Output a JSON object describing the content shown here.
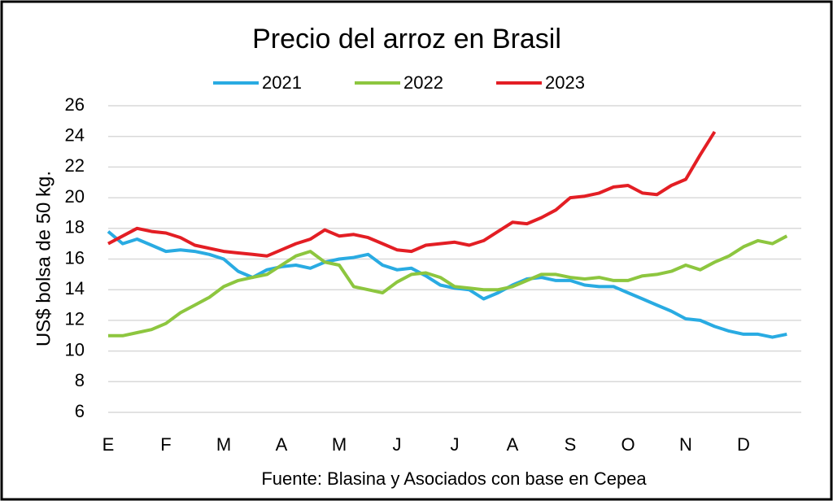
{
  "chart_data": {
    "type": "line",
    "title": "Precio del arroz en Brasil",
    "y_label": "US$ bolsa de 50 kg.",
    "source": "Fuente: Blasina y Asociados con base en Cepea",
    "categories": [
      "E",
      null,
      null,
      null,
      "F",
      null,
      null,
      null,
      "M",
      null,
      null,
      null,
      "A",
      null,
      null,
      null,
      "M",
      null,
      null,
      null,
      "J",
      null,
      null,
      null,
      "J",
      null,
      null,
      null,
      "A",
      null,
      null,
      null,
      "S",
      null,
      null,
      null,
      "O",
      null,
      null,
      null,
      "N",
      null,
      null,
      null,
      "D",
      null,
      null,
      null
    ],
    "series": [
      {
        "name": "2021",
        "color": "#29abe2",
        "values": [
          17.8,
          17.0,
          17.3,
          16.9,
          16.5,
          16.6,
          16.5,
          16.3,
          16.0,
          15.2,
          14.8,
          15.3,
          15.5,
          15.6,
          15.4,
          15.8,
          16.0,
          16.1,
          16.3,
          15.6,
          15.3,
          15.4,
          14.9,
          14.3,
          14.1,
          14.0,
          13.4,
          13.8,
          14.3,
          14.7,
          14.8,
          14.6,
          14.6,
          14.3,
          14.2,
          14.2,
          13.8,
          13.4,
          13.0,
          12.6,
          12.1,
          12.0,
          11.6,
          11.3,
          11.1,
          11.1,
          10.9,
          11.1
        ]
      },
      {
        "name": "2022",
        "color": "#8dc63f",
        "values": [
          11.0,
          11.0,
          11.2,
          11.4,
          11.8,
          12.5,
          13.0,
          13.5,
          14.2,
          14.6,
          14.8,
          15.0,
          15.6,
          16.2,
          16.5,
          15.8,
          15.6,
          14.2,
          14.0,
          13.8,
          14.5,
          15.0,
          15.1,
          14.8,
          14.2,
          14.1,
          14.0,
          14.0,
          14.2,
          14.6,
          15.0,
          15.0,
          14.8,
          14.7,
          14.8,
          14.6,
          14.6,
          14.9,
          15.0,
          15.2,
          15.6,
          15.3,
          15.8,
          16.2,
          16.8,
          17.2,
          17.0,
          17.5
        ]
      },
      {
        "name": "2023",
        "color": "#e31e24",
        "values": [
          17.0,
          17.5,
          18.0,
          17.8,
          17.7,
          17.4,
          16.9,
          16.7,
          16.5,
          16.4,
          16.3,
          16.2,
          16.6,
          17.0,
          17.3,
          17.9,
          17.5,
          17.6,
          17.4,
          17.0,
          16.6,
          16.5,
          16.9,
          17.0,
          17.1,
          16.9,
          17.2,
          17.8,
          18.4,
          18.3,
          18.7,
          19.2,
          20.0,
          20.1,
          20.3,
          20.7,
          20.8,
          20.3,
          20.2,
          20.8,
          21.2,
          22.8,
          24.3,
          null,
          null,
          null,
          null,
          null
        ]
      }
    ],
    "ylim": [
      6,
      26
    ],
    "yticks": [
      6,
      8,
      10,
      12,
      14,
      16,
      18,
      20,
      22,
      24,
      26
    ],
    "grid": true
  }
}
